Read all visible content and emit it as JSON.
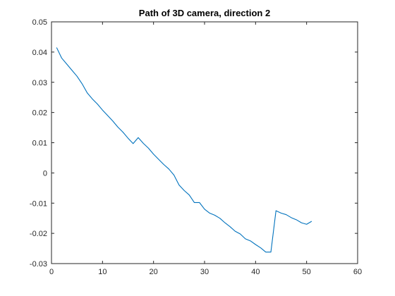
{
  "chart_data": {
    "type": "line",
    "title": "Path of 3D camera, direction 2",
    "xlabel": "",
    "ylabel": "",
    "xlim": [
      0,
      60
    ],
    "ylim": [
      -0.03,
      0.05
    ],
    "xticks": [
      0,
      10,
      20,
      30,
      40,
      50,
      60
    ],
    "yticks": [
      -0.03,
      -0.02,
      -0.01,
      0,
      0.01,
      0.02,
      0.03,
      0.04,
      0.05
    ],
    "xtick_labels": [
      "0",
      "10",
      "20",
      "30",
      "40",
      "50",
      "60"
    ],
    "ytick_labels": [
      "-0.03",
      "-0.02",
      "-0.01",
      "0",
      "0.01",
      "0.02",
      "0.03",
      "0.04",
      "0.05"
    ],
    "grid": false,
    "series": [
      {
        "color": "#0072bd",
        "x": [
          1,
          2,
          3,
          4,
          5,
          6,
          7,
          8,
          9,
          10,
          11,
          12,
          13,
          14,
          15,
          16,
          17,
          18,
          19,
          20,
          21,
          22,
          23,
          24,
          25,
          26,
          27,
          28,
          29,
          30,
          31,
          32,
          33,
          34,
          35,
          36,
          37,
          38,
          39,
          40,
          41,
          42,
          43,
          44,
          45,
          46,
          47,
          48,
          49,
          50,
          51
        ],
        "y": [
          0.0415,
          0.038,
          0.036,
          0.034,
          0.032,
          0.0295,
          0.0265,
          0.0245,
          0.0228,
          0.0208,
          0.019,
          0.0172,
          0.0152,
          0.0135,
          0.0115,
          0.0097,
          0.0117,
          0.0098,
          0.0082,
          0.0062,
          0.0045,
          0.0028,
          0.0013,
          -0.0007,
          -0.004,
          -0.0058,
          -0.0073,
          -0.0098,
          -0.0098,
          -0.012,
          -0.0133,
          -0.014,
          -0.015,
          -0.0165,
          -0.0178,
          -0.0193,
          -0.0202,
          -0.0218,
          -0.0225,
          -0.0237,
          -0.0248,
          -0.0262,
          -0.0262,
          -0.0125,
          -0.0133,
          -0.0138,
          -0.0148,
          -0.0155,
          -0.0165,
          -0.017,
          -0.016
        ]
      }
    ]
  }
}
